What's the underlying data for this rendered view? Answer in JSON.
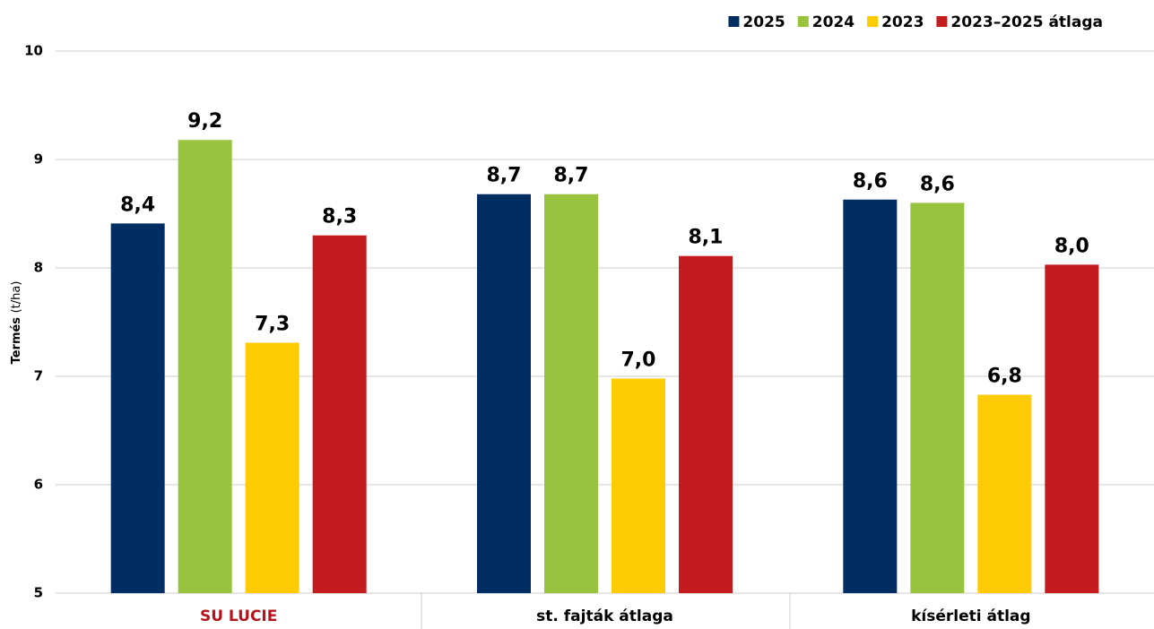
{
  "chart_data": {
    "type": "bar",
    "categories": [
      "SU LUCIE",
      "st. fajták átlaga",
      "kísérleti átlag"
    ],
    "category_colors": [
      "#b5121b",
      "#000000",
      "#000000"
    ],
    "series": [
      {
        "name": "2025",
        "color": "#002d62",
        "values": [
          8.41,
          8.68,
          8.63
        ],
        "value_labels": [
          "8,4",
          "8,7",
          "8,6"
        ]
      },
      {
        "name": "2024",
        "color": "#97c33f",
        "values": [
          9.18,
          8.68,
          8.6
        ],
        "value_labels": [
          "9,2",
          "8,7",
          "8,6"
        ]
      },
      {
        "name": "2023",
        "color": "#ffcb05",
        "values": [
          7.31,
          6.98,
          6.83
        ],
        "value_labels": [
          "7,3",
          "7,0",
          "6,8"
        ]
      },
      {
        "name": "2023–2025 átlaga",
        "color": "#c41b1f",
        "values": [
          8.3,
          8.11,
          8.03
        ],
        "value_labels": [
          "8,3",
          "8,1",
          "8,0"
        ]
      }
    ],
    "ylabel": "Termés",
    "ylabel_unit": "(t/ha)",
    "ylim": [
      5,
      10
    ],
    "yticks": [
      5,
      6,
      7,
      8,
      9,
      10
    ],
    "grid": true,
    "legend": "top-right"
  }
}
